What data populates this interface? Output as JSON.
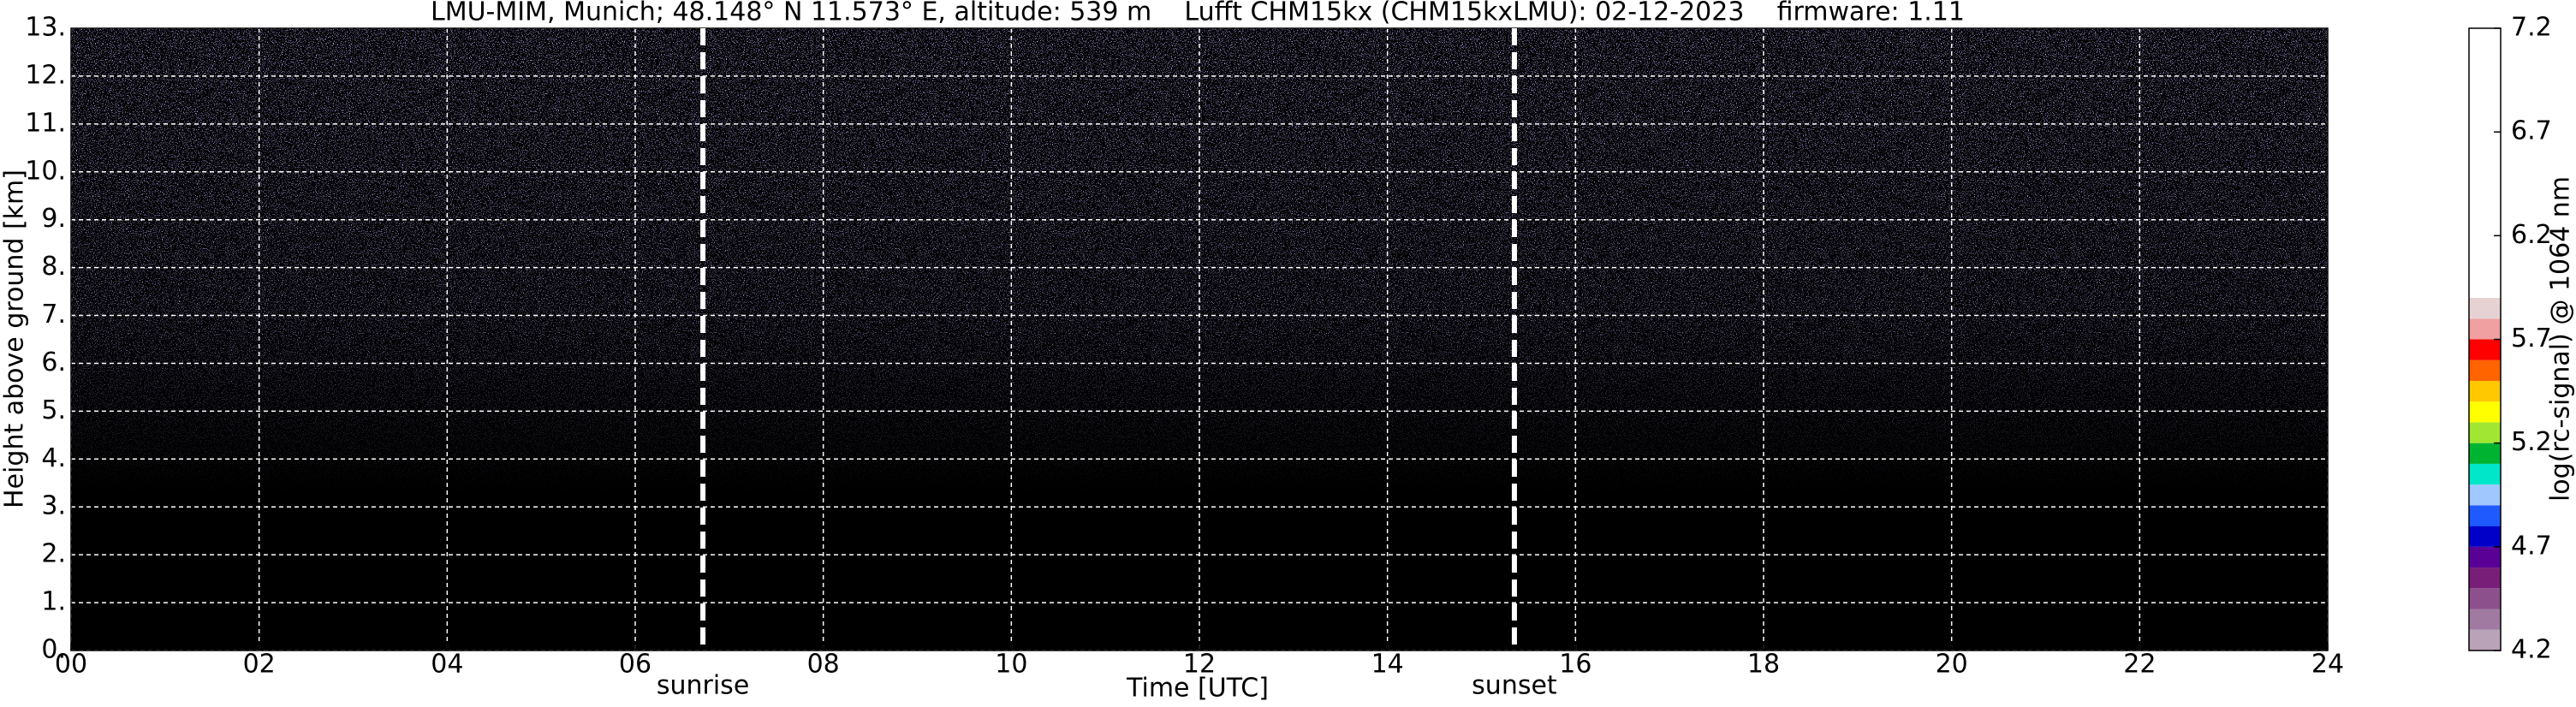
{
  "chart_data": {
    "type": "heatmap",
    "title": "LMU-MIM, Munich; 48.148° N 11.573° E, altitude: 539 m    Lufft CHM15kx (CHM15kxLMU): 02-12-2023    firmware: 1.11",
    "x_label": "Time [UTC]",
    "y_label": "Height above ground [km]",
    "xlim": [
      0,
      24
    ],
    "xticks": [
      {
        "value": 0,
        "label": "00"
      },
      {
        "value": 2,
        "label": "02"
      },
      {
        "value": 4,
        "label": "04"
      },
      {
        "value": 6,
        "label": "06"
      },
      {
        "value": 8,
        "label": "08"
      },
      {
        "value": 10,
        "label": "10"
      },
      {
        "value": 12,
        "label": "12"
      },
      {
        "value": 14,
        "label": "14"
      },
      {
        "value": 16,
        "label": "16"
      },
      {
        "value": 18,
        "label": "18"
      },
      {
        "value": 20,
        "label": "20"
      },
      {
        "value": 22,
        "label": "22"
      },
      {
        "value": 24,
        "label": "24"
      }
    ],
    "ylim": [
      0,
      13
    ],
    "yticks": [
      {
        "value": 0,
        "label": "0."
      },
      {
        "value": 1,
        "label": "1."
      },
      {
        "value": 2,
        "label": "2."
      },
      {
        "value": 3,
        "label": "3."
      },
      {
        "value": 4,
        "label": "4."
      },
      {
        "value": 5,
        "label": "5."
      },
      {
        "value": 6,
        "label": "6."
      },
      {
        "value": 7,
        "label": "7."
      },
      {
        "value": 8,
        "label": "8."
      },
      {
        "value": 9,
        "label": "9."
      },
      {
        "value": 10,
        "label": "10."
      },
      {
        "value": 11,
        "label": "11."
      },
      {
        "value": 12,
        "label": "12."
      },
      {
        "value": 13,
        "label": "13."
      }
    ],
    "grid": true,
    "events": [
      {
        "label": "sunrise",
        "x": 6.72
      },
      {
        "label": "sunset",
        "x": 15.35
      }
    ],
    "colorbar": {
      "label": "log(rc-signal) @ 1064 nm",
      "lim": [
        4.2,
        7.2
      ],
      "ticks": [
        4.2,
        4.7,
        5.2,
        5.7,
        6.2,
        6.7,
        7.2
      ],
      "levels": [
        4.2,
        4.3,
        4.4,
        4.5,
        4.6,
        4.7,
        4.8,
        4.9,
        5.0,
        5.1,
        5.2,
        5.3,
        5.4,
        5.5,
        5.6,
        5.7,
        5.8,
        5.9,
        7.2
      ],
      "colors": [
        "#b9a3b9",
        "#a07aa0",
        "#8c508c",
        "#781e78",
        "#5a0096",
        "#0000c8",
        "#1e5aff",
        "#a0c8ff",
        "#00e6c8",
        "#00b432",
        "#a0e632",
        "#ffff00",
        "#ffc800",
        "#ff6400",
        "#ff0000",
        "#f0a0a0",
        "#e6d2d2",
        "#ffffff"
      ]
    }
  }
}
